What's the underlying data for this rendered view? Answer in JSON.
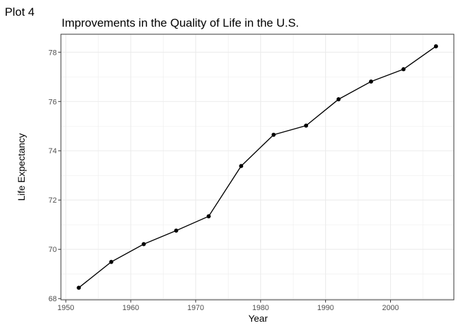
{
  "plot_tag": "Plot 4",
  "chart_data": {
    "type": "line",
    "title": "Improvements in the Quality of Life in the U.S.",
    "xlabel": "Year",
    "ylabel": "Life Expectancy",
    "x": [
      1952,
      1957,
      1962,
      1967,
      1972,
      1977,
      1982,
      1987,
      1992,
      1997,
      2002,
      2007
    ],
    "values": [
      68.44,
      69.49,
      70.21,
      70.76,
      71.34,
      73.38,
      74.65,
      75.02,
      76.09,
      76.81,
      77.31,
      78.24
    ],
    "xlim": [
      1949.25,
      2009.75
    ],
    "ylim": [
      67.95,
      78.73
    ],
    "x_ticks": [
      1950,
      1960,
      1970,
      1980,
      1990,
      2000
    ],
    "y_ticks": [
      68,
      70,
      72,
      74,
      76,
      78
    ],
    "x_tick_labels": [
      "1950",
      "1960",
      "1970",
      "1980",
      "1990",
      "2000"
    ],
    "y_tick_labels": [
      "68",
      "70",
      "72",
      "74",
      "76",
      "78"
    ],
    "grid": true,
    "legend": "none",
    "line_color": "#000000",
    "point_color": "#000000",
    "grid_color": "#ebebeb"
  }
}
